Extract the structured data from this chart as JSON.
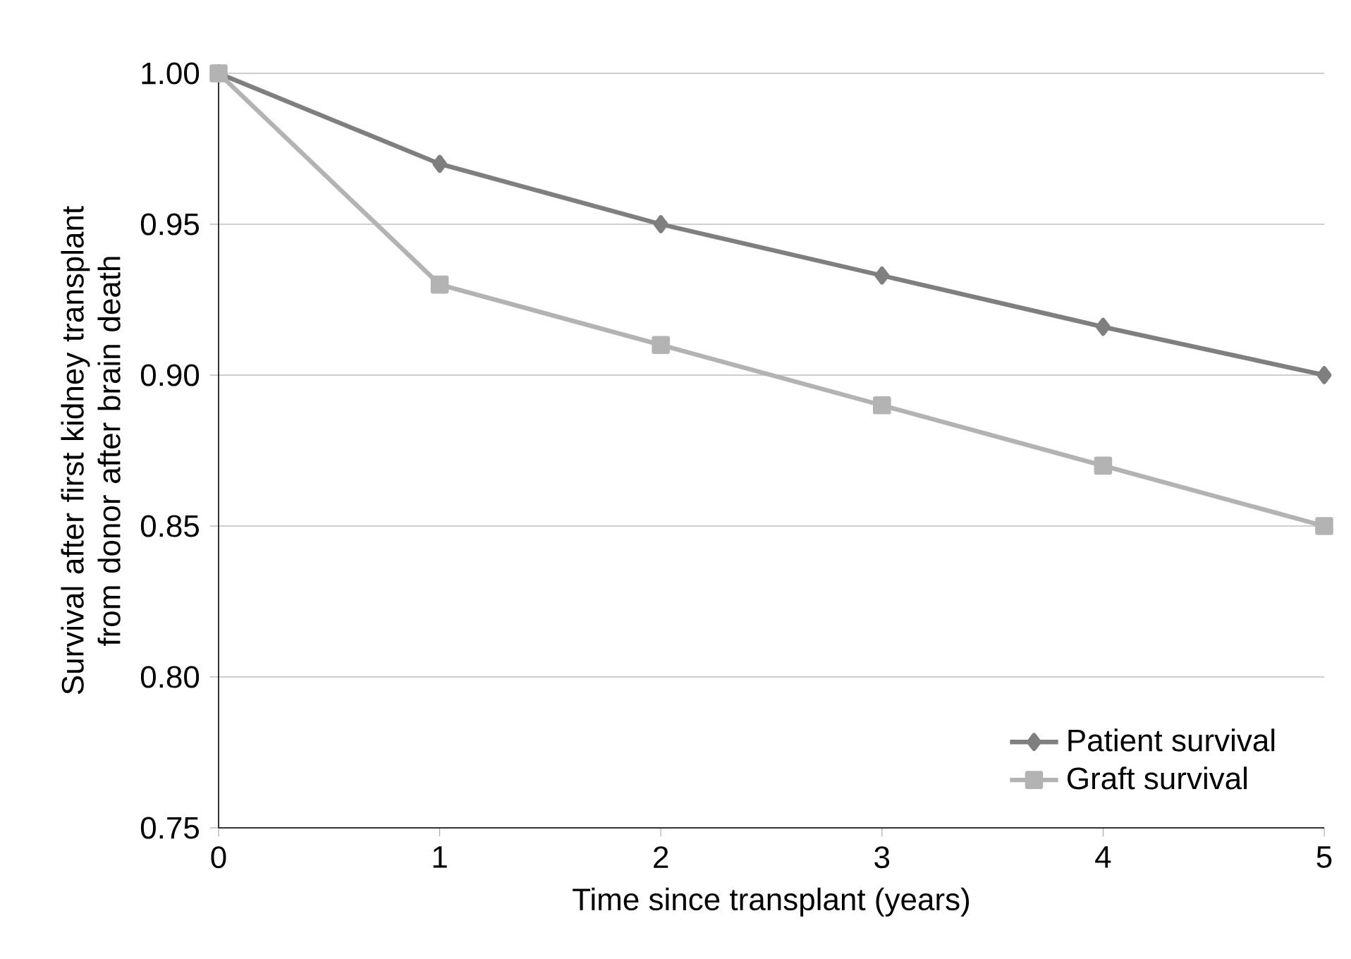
{
  "chart_data": {
    "type": "line",
    "xlabel": "Time since transplant (years)",
    "ylabel": "Survival after first kidney transplant from donor after brain death",
    "x": [
      0,
      1,
      2,
      3,
      4,
      5
    ],
    "series": [
      {
        "name": "Patient survival",
        "color": "#7f7f7f",
        "marker": "diamond",
        "values": [
          1.0,
          0.97,
          0.95,
          0.933,
          0.916,
          0.9
        ]
      },
      {
        "name": "Graft survival",
        "color": "#b3b3b3",
        "marker": "square",
        "values": [
          1.0,
          0.93,
          0.91,
          0.89,
          0.87,
          0.85
        ]
      }
    ],
    "xlim": [
      0,
      5
    ],
    "xticks": [
      0,
      1,
      2,
      3,
      4,
      5
    ],
    "ylim": [
      0.75,
      1.0
    ],
    "yticks": [
      {
        "value": 0.75,
        "label": "0.75"
      },
      {
        "value": 0.8,
        "label": "0.80"
      },
      {
        "value": 0.85,
        "label": "0.85"
      },
      {
        "value": 0.9,
        "label": "0.90"
      },
      {
        "value": 0.95,
        "label": "0.95"
      },
      {
        "value": 1.0,
        "label": "1.00"
      }
    ],
    "grid": "y",
    "legend": "bottom right",
    "line_style": "solid"
  }
}
